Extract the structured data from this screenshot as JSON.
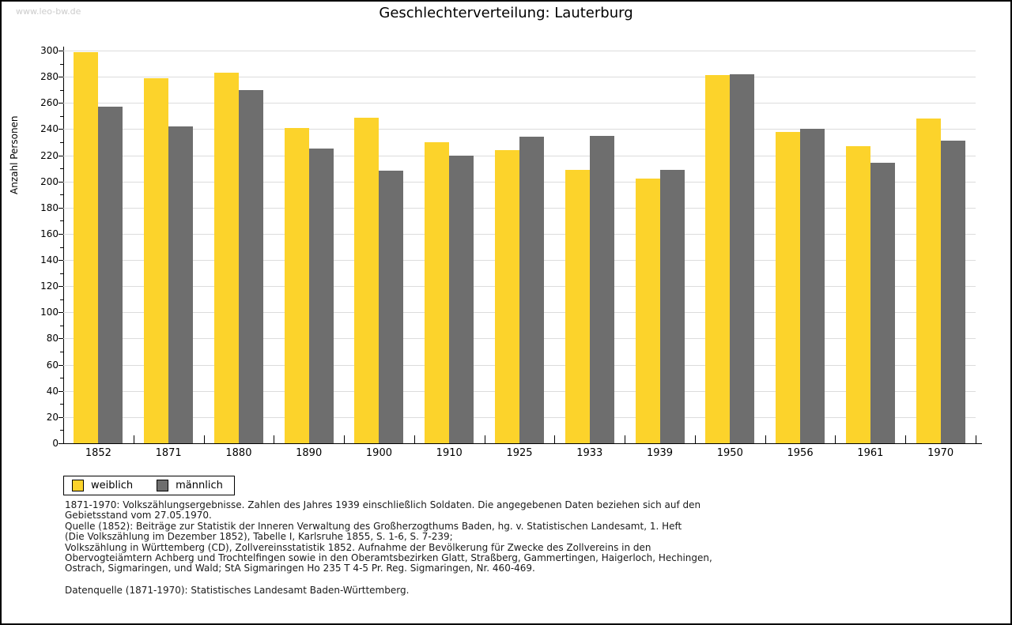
{
  "watermark": "www.leo-bw.de",
  "title": "Geschlechterverteilung: Lauterburg",
  "chart_data": {
    "type": "bar",
    "title": "Geschlechterverteilung: Lauterburg",
    "xlabel": "",
    "ylabel": "Anzahl Personen",
    "ylim": [
      0,
      300
    ],
    "ytick_major_step": 20,
    "ytick_minor_step": 10,
    "grid": true,
    "legend_position": "bottom-left",
    "categories": [
      "1852",
      "1871",
      "1880",
      "1890",
      "1900",
      "1910",
      "1925",
      "1933",
      "1939",
      "1950",
      "1956",
      "1961",
      "1970"
    ],
    "series": [
      {
        "name": "weiblich",
        "color": "#FCD32B",
        "values": [
          299,
          279,
          283,
          241,
          249,
          230,
          224,
          209,
          202,
          281,
          238,
          227,
          248
        ]
      },
      {
        "name": "männlich",
        "color": "#6E6E6E",
        "values": [
          257,
          242,
          270,
          225,
          208,
          220,
          234,
          235,
          209,
          282,
          240,
          214,
          231
        ]
      }
    ]
  },
  "colors": {
    "grid": "#dcdcdc",
    "axis": "#000000",
    "watermark": "#cccccc",
    "background": "#ffffff"
  },
  "footer": {
    "paragraph1_lines": [
      "1871-1970: Volkszählungsergebnisse. Zahlen des Jahres 1939 einschließlich Soldaten. Die angegebenen Daten beziehen sich auf den",
      "Gebietsstand vom 27.05.1970.",
      "Quelle (1852): Beiträge zur Statistik der Inneren Verwaltung des Großherzogthums Baden, hg. v. Statistischen Landesamt, 1. Heft",
      "(Die Volkszählung im Dezember 1852), Tabelle I, Karlsruhe 1855, S. 1-6, S. 7-239;",
      "Volkszählung in Württemberg (CD), Zollvereinsstatistik 1852. Aufnahme der Bevölkerung für Zwecke des Zollvereins in den",
      "Obervogteiämtern Achberg und Trochtelfingen sowie in den Oberamtsbezirken Glatt, Straßberg, Gammertingen, Haigerloch, Hechingen,",
      "Ostrach, Sigmaringen, und Wald; StA Sigmaringen Ho 235 T 4-5 Pr. Reg. Sigmaringen, Nr. 460-469."
    ],
    "paragraph2": "Datenquelle (1871-1970): Statistisches Landesamt Baden-Württemberg."
  }
}
